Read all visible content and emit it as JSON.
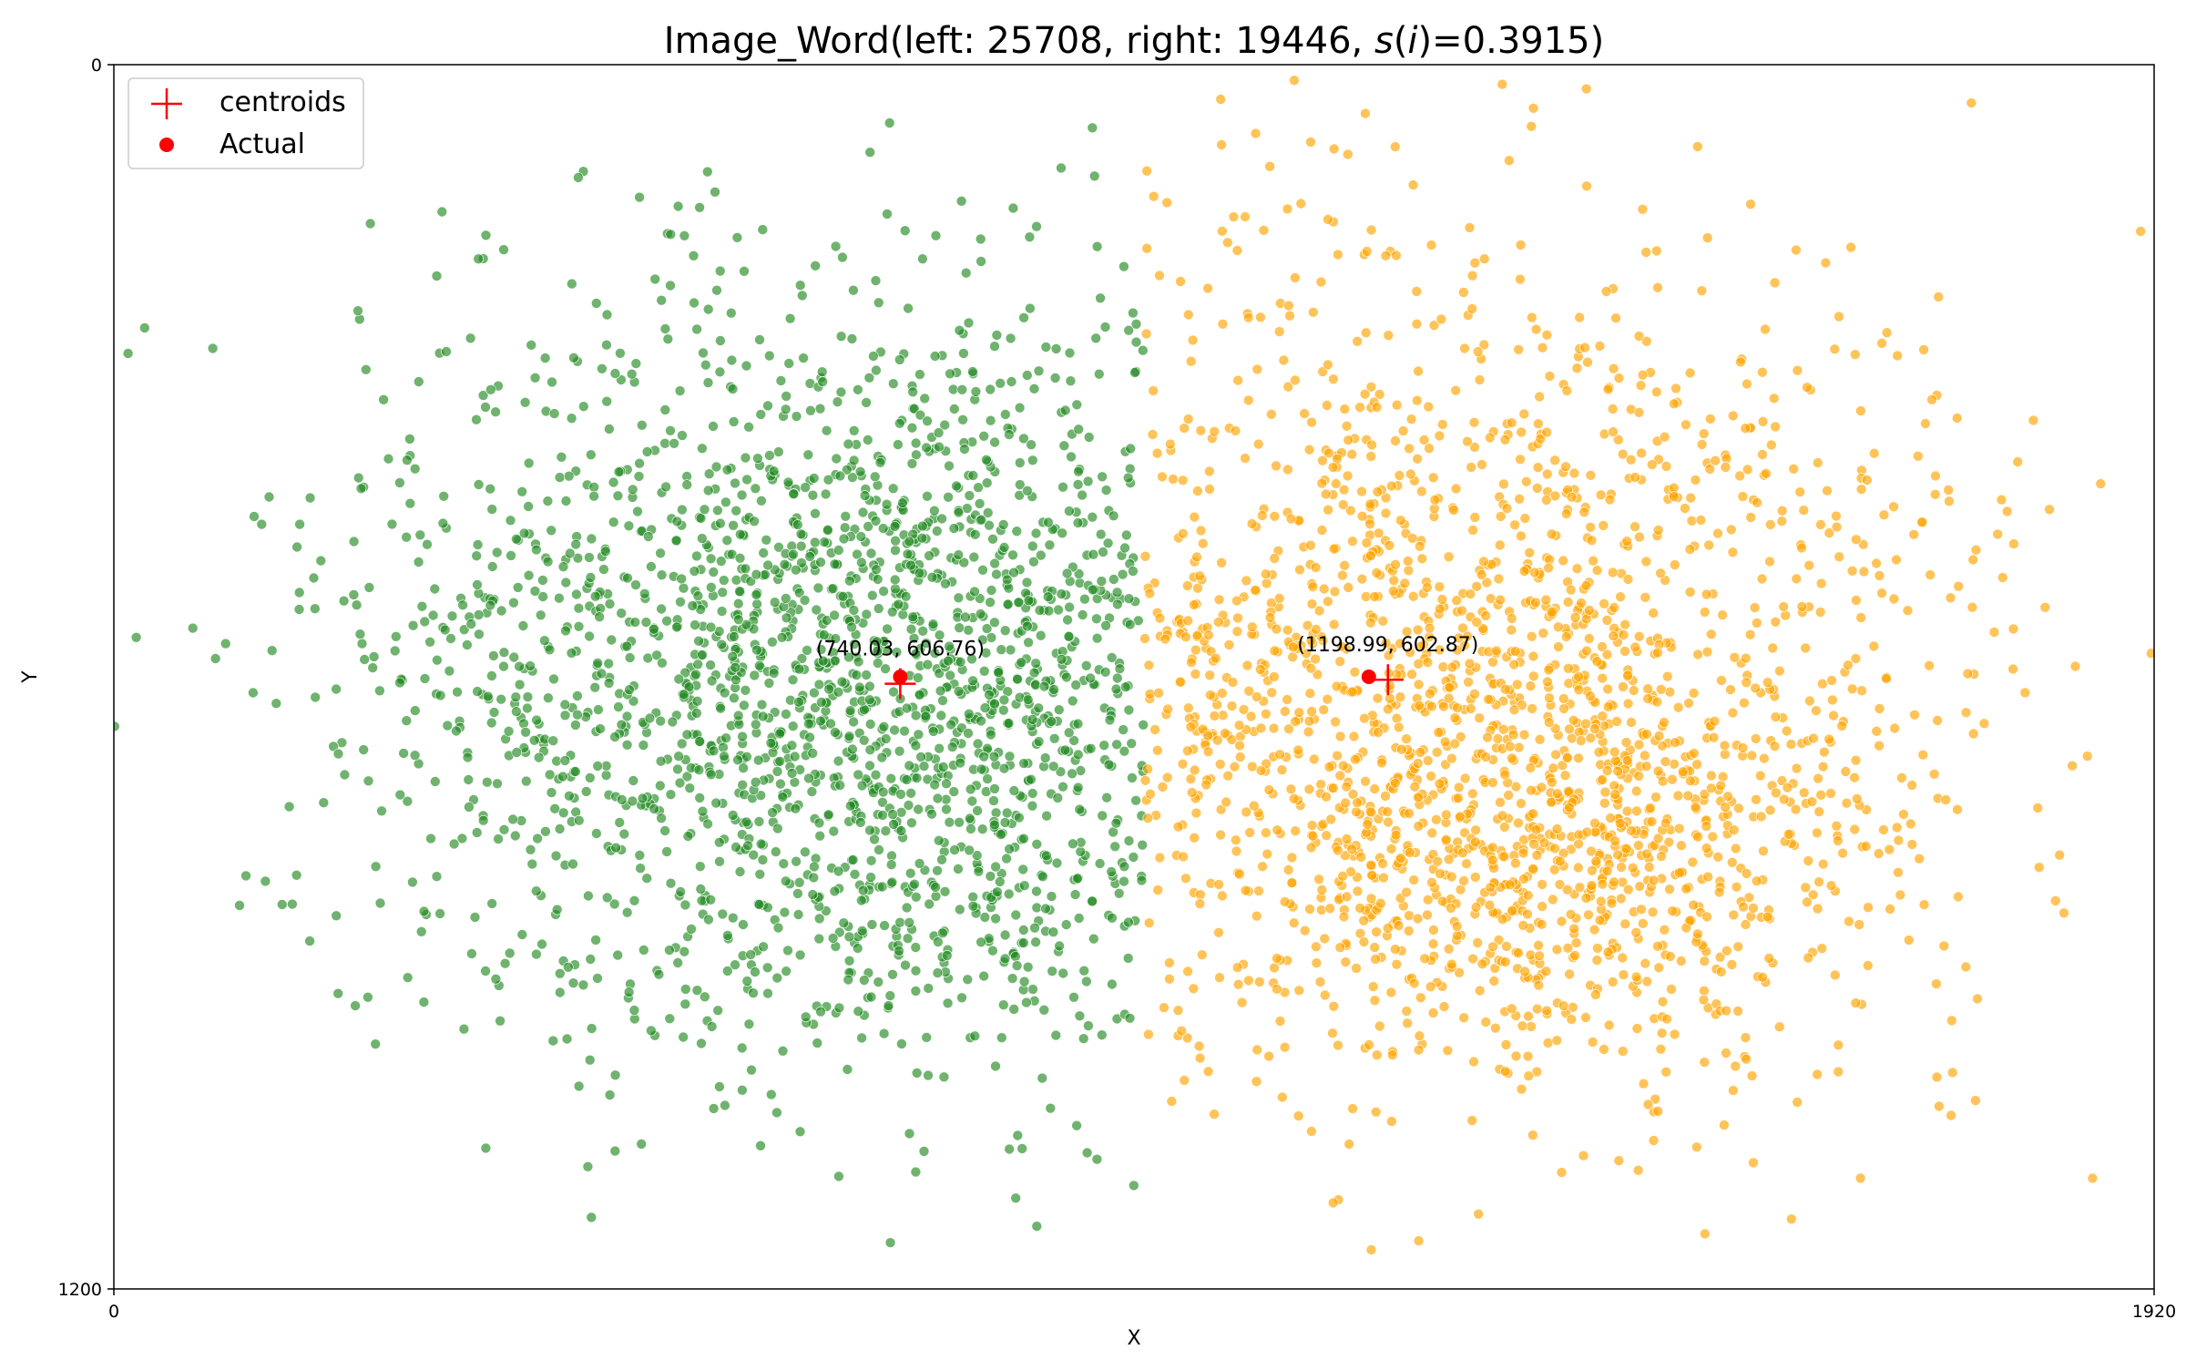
{
  "chart_data": {
    "type": "scatter",
    "title": {
      "prefix": "Image_Word(left: 25708, right: 19446, ",
      "italic_s": "s",
      "paren_open": "(",
      "italic_i": "i",
      "suffix": ")=0.3915)"
    },
    "xlabel": "X",
    "ylabel": "Y",
    "xlim": [
      0,
      1920
    ],
    "ylim": [
      1200,
      0
    ],
    "y_inverted": true,
    "x_ticks": [
      "0",
      "1920"
    ],
    "y_ticks": [
      "0",
      "1200"
    ],
    "grid": false,
    "legend": {
      "placement": "top-left",
      "entries": [
        {
          "label": "centroids",
          "marker": "plus",
          "color": "#ff0000"
        },
        {
          "label": "Actual",
          "marker": "dot",
          "color": "#ff0000"
        }
      ]
    },
    "series": [
      {
        "name": "left",
        "count": 25708,
        "color": "#228b22",
        "edge": "#ffffff",
        "x_range": [
          0,
          970
        ],
        "center": [
          710,
          608
        ]
      },
      {
        "name": "right",
        "count": 19446,
        "color": "#ffa500",
        "edge": "#ffffff",
        "x_range": [
          970,
          1920
        ],
        "center": [
          1230,
          580
        ]
      }
    ],
    "centroids": [
      {
        "x": 740.03,
        "y": 606.76,
        "label": "(740.03, 606.76)"
      },
      {
        "x": 1198.99,
        "y": 602.87,
        "label": "(1198.99, 602.87)"
      }
    ],
    "actual": [
      {
        "x": 740.03,
        "y": 600.0
      },
      {
        "x": 1181.0,
        "y": 600.0
      }
    ]
  }
}
